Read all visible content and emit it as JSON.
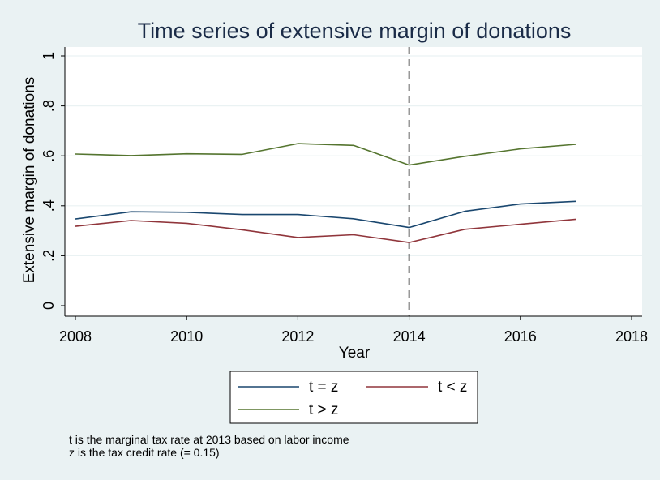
{
  "chart_data": {
    "type": "line",
    "title": "Time series of extensive margin of donations",
    "xlabel": "Year",
    "ylabel": "Extensive margin of donations",
    "xlim": [
      2008,
      2018
    ],
    "ylim": [
      0,
      1
    ],
    "x_ticks": [
      2008,
      2010,
      2012,
      2014,
      2016,
      2018
    ],
    "y_ticks": [
      0,
      0.2,
      0.4,
      0.6,
      0.8,
      1
    ],
    "y_tick_labels": [
      "0",
      ".2",
      ".4",
      ".6",
      ".8",
      "1"
    ],
    "grid": "horizontal",
    "reference_line": {
      "x": 2014,
      "style": "dashed",
      "color": "#000000"
    },
    "x": [
      2008,
      2009,
      2010,
      2011,
      2012,
      2013,
      2014,
      2015,
      2016,
      2017
    ],
    "series": [
      {
        "name": "t = z",
        "color": "#1a476f",
        "values": [
          0.347,
          0.376,
          0.374,
          0.365,
          0.365,
          0.348,
          0.313,
          0.378,
          0.407,
          0.418
        ]
      },
      {
        "name": "t < z",
        "color": "#90353b",
        "values": [
          0.318,
          0.341,
          0.33,
          0.304,
          0.273,
          0.284,
          0.253,
          0.306,
          0.326,
          0.346
        ]
      },
      {
        "name": "t > z",
        "color": "#55752f",
        "values": [
          0.607,
          0.601,
          0.608,
          0.606,
          0.649,
          0.642,
          0.563,
          0.598,
          0.628,
          0.646
        ]
      }
    ],
    "legend_position": "bottom",
    "notes": [
      "t is the marginal tax rate at 2013 based on labor income",
      "z is the tax credit rate (= 0.15)"
    ]
  }
}
